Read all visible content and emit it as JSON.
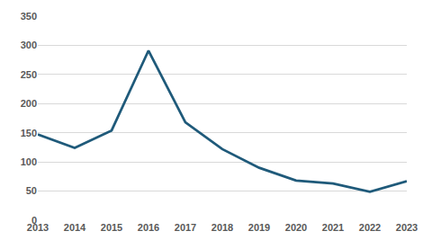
{
  "chart_data": {
    "type": "line",
    "categories": [
      "2013",
      "2014",
      "2015",
      "2016",
      "2017",
      "2018",
      "2019",
      "2020",
      "2021",
      "2022",
      "2023"
    ],
    "values": [
      147,
      124,
      154,
      291,
      168,
      122,
      90,
      68,
      63,
      49,
      67
    ],
    "color": "#1f5a7a",
    "ylim": [
      0,
      350
    ],
    "yticks": [
      0,
      50,
      100,
      150,
      200,
      250,
      300,
      350
    ],
    "grid": true
  }
}
